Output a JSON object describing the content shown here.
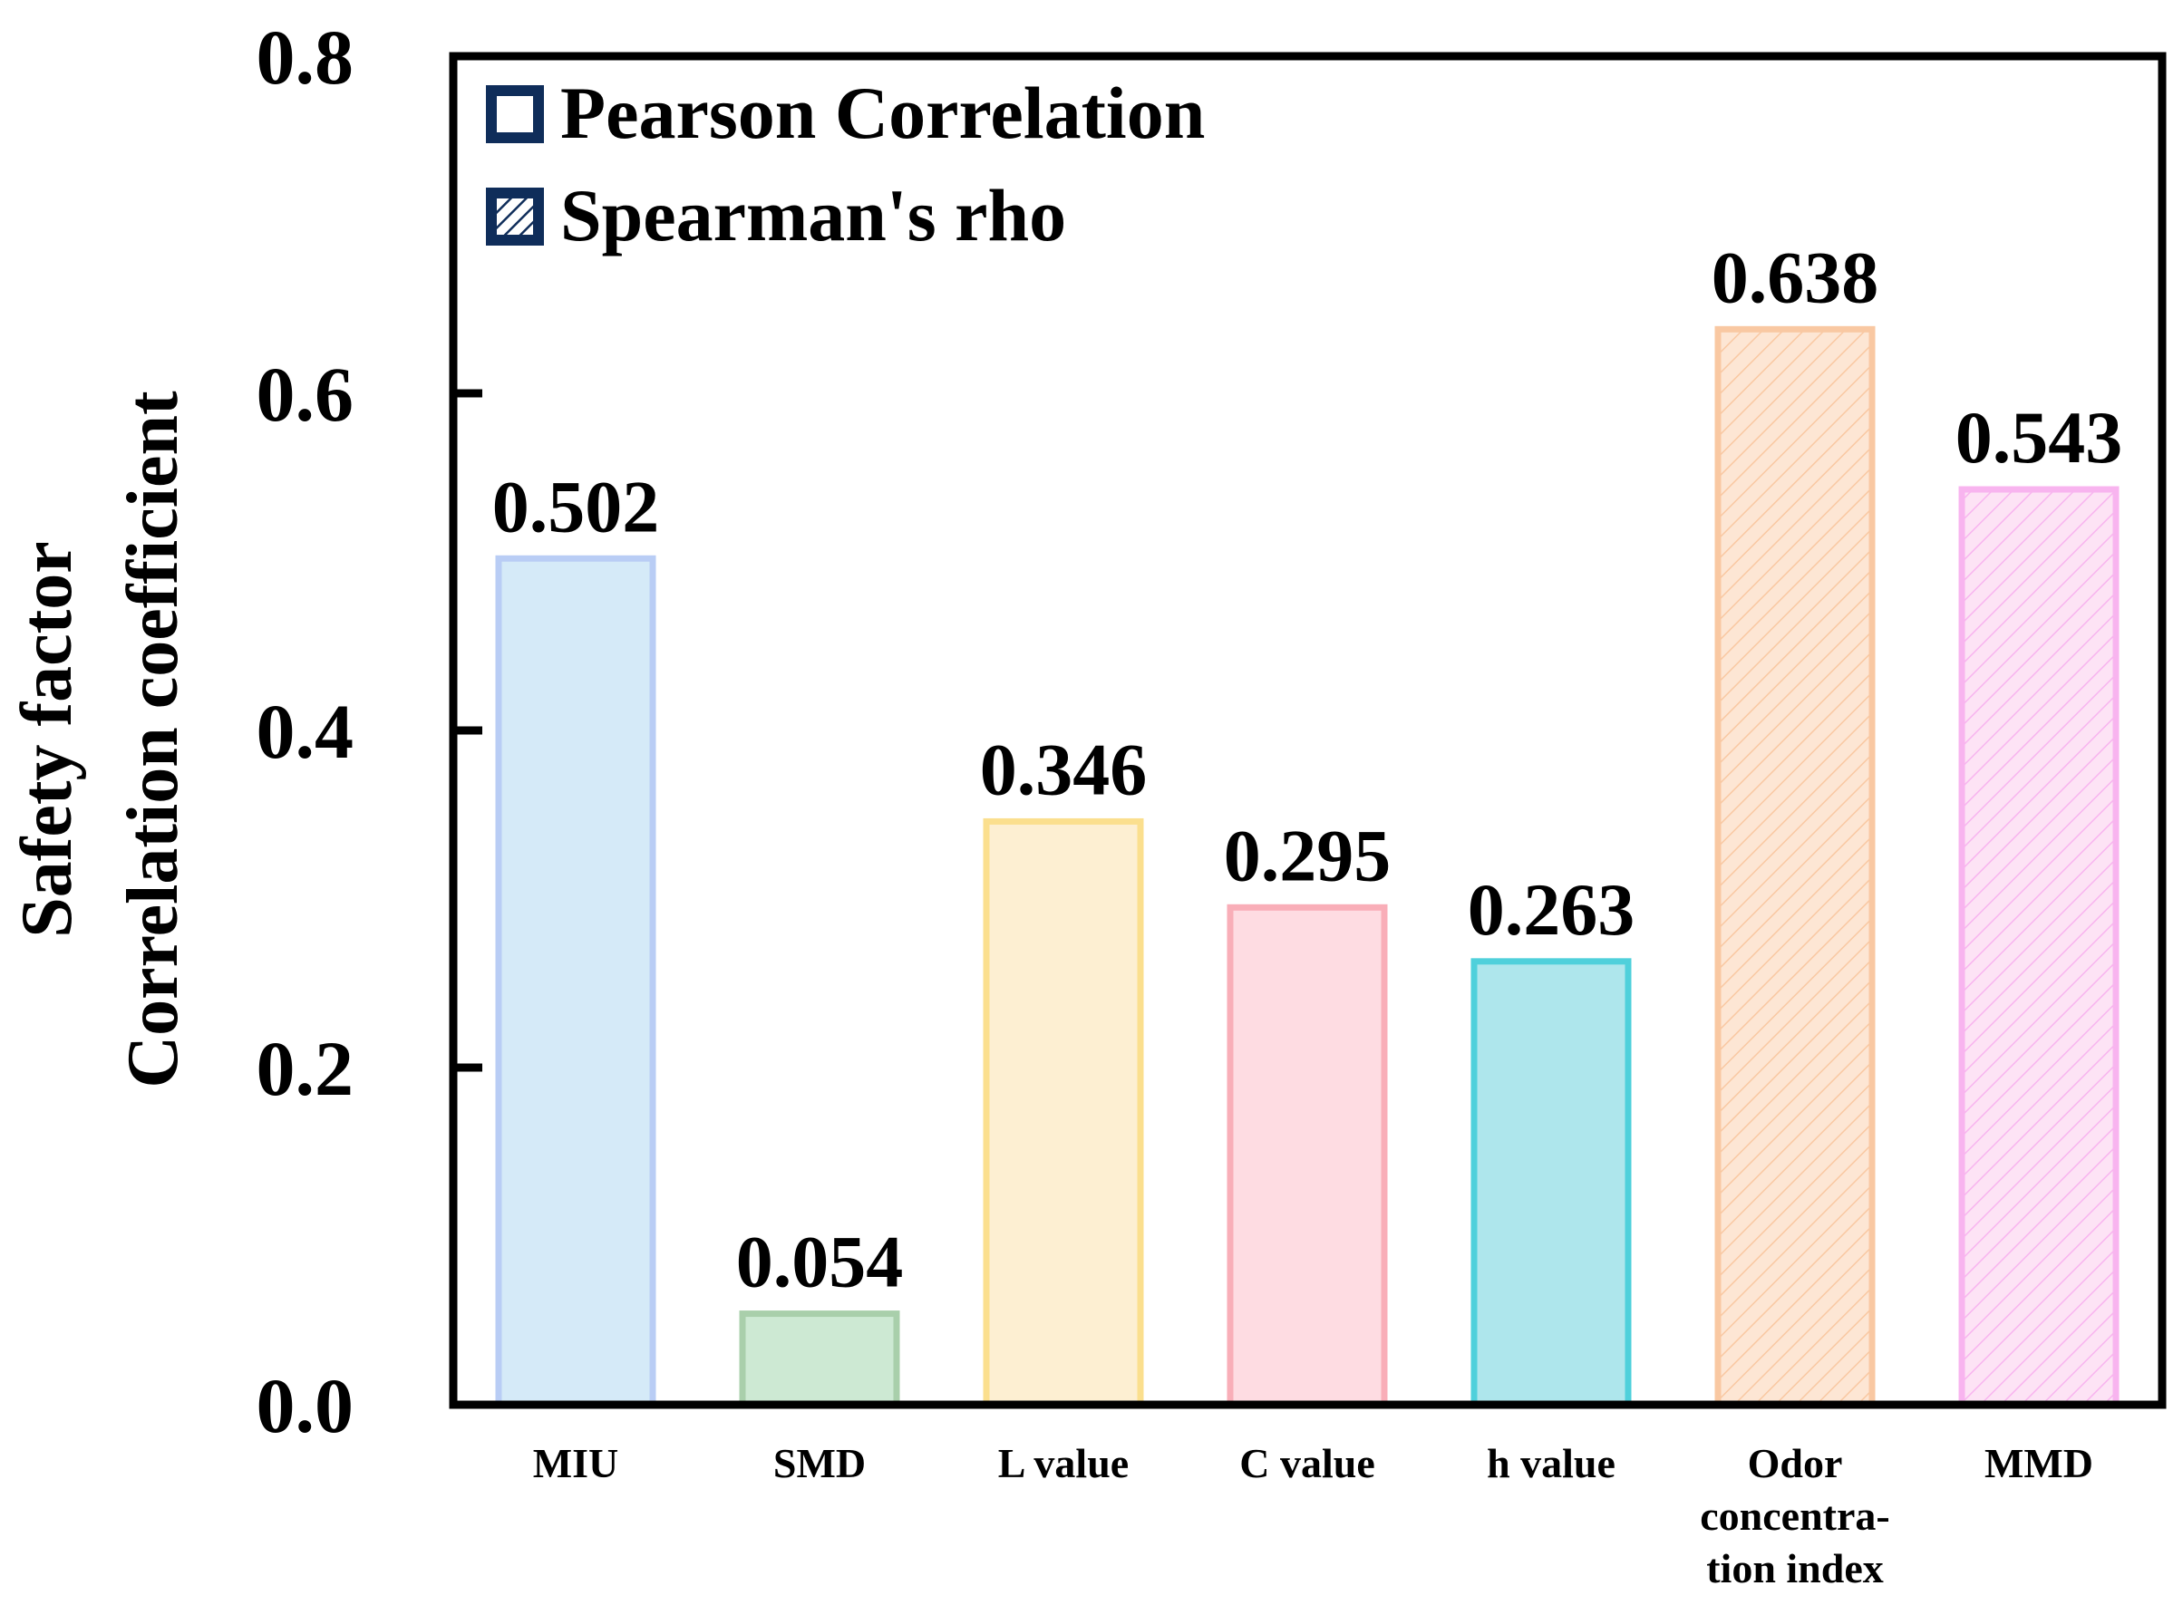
{
  "chart_data": {
    "type": "bar",
    "title": "",
    "xlabel": "",
    "ylabel_lines": [
      "Safety factor",
      "Correlation coefficient"
    ],
    "ylim": [
      0,
      0.8
    ],
    "yticks": [
      "0.0",
      "0.2",
      "0.4",
      "0.6",
      "0.8"
    ],
    "ytick_values": [
      0,
      0.2,
      0.4,
      0.6,
      0.8
    ],
    "legend": {
      "placement": "top-left",
      "entries": [
        {
          "label": "Pearson Correlation",
          "pattern": "solid"
        },
        {
          "label": "Spearman's rho",
          "pattern": "hatched"
        }
      ],
      "color": "#0f2d5a"
    },
    "categories": [
      {
        "label_lines": [
          "MIU"
        ],
        "value": 0.502,
        "value_label": "0.502",
        "method": "Pearson Correlation",
        "fill": "#d5eaf8",
        "stroke": "#b9cdf5"
      },
      {
        "label_lines": [
          "SMD"
        ],
        "value": 0.054,
        "value_label": "0.054",
        "method": "Pearson Correlation",
        "fill": "#cde9d3",
        "stroke": "#a9cfab"
      },
      {
        "label_lines": [
          "L value"
        ],
        "value": 0.346,
        "value_label": "0.346",
        "method": "Pearson Correlation",
        "fill": "#fdefd2",
        "stroke": "#fbdf8e"
      },
      {
        "label_lines": [
          "C value"
        ],
        "value": 0.295,
        "value_label": "0.295",
        "method": "Pearson Correlation",
        "fill": "#fedce2",
        "stroke": "#f9aeb8"
      },
      {
        "label_lines": [
          "h value"
        ],
        "value": 0.263,
        "value_label": "0.263",
        "method": "Pearson Correlation",
        "fill": "#aee6ec",
        "stroke": "#4fd0db"
      },
      {
        "label_lines": [
          "Odor",
          "concentra-",
          "tion index"
        ],
        "value": 0.638,
        "value_label": "0.638",
        "method": "Spearman's rho",
        "fill": "#fde6d4",
        "stroke": "#f9c8a2"
      },
      {
        "label_lines": [
          "MMD"
        ],
        "value": 0.543,
        "value_label": "0.543",
        "method": "Spearman's rho",
        "fill": "#fde3f5",
        "stroke": "#f8b4ef"
      }
    ]
  }
}
